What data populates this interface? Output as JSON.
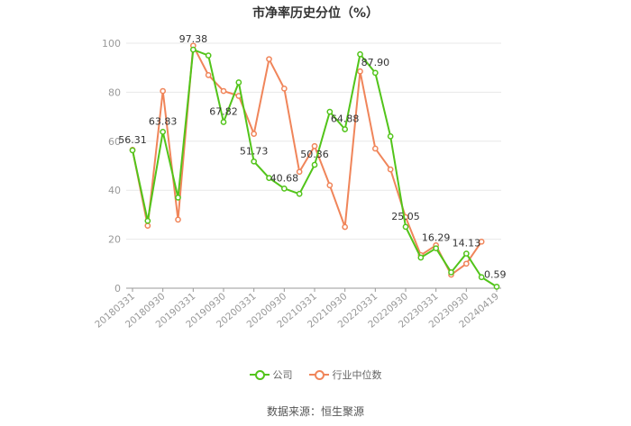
{
  "title": "市净率历史分位（%）",
  "source": "数据来源：恒生聚源",
  "legend": {
    "company": "公司",
    "industry": "行业中位数"
  },
  "colors": {
    "company": "#52c41a",
    "industry": "#f0855a",
    "grid": "#e8e8e8",
    "axis": "#999999"
  },
  "chart_data": {
    "type": "line",
    "title": "市净率历史分位（%）",
    "xlabel": "",
    "ylabel": "",
    "ylim": [
      0,
      100
    ],
    "yticks": [
      0,
      20,
      40,
      60,
      80,
      100
    ],
    "grid": true,
    "legend_position": "bottom",
    "x_tick_labels": [
      "20180331",
      "20180930",
      "20190331",
      "20190930",
      "20200331",
      "20200930",
      "20210331",
      "20210930",
      "20220331",
      "20220930",
      "20230331",
      "20230930",
      "20240419"
    ],
    "series": [
      {
        "name": "公司",
        "values": [
          56.31,
          27.5,
          63.83,
          37.0,
          97.38,
          95.0,
          67.82,
          84.0,
          51.73,
          45.0,
          40.68,
          38.5,
          50.36,
          72.0,
          64.88,
          95.5,
          87.9,
          62.0,
          25.05,
          12.5,
          16.29,
          6.5,
          14.13,
          4.5,
          0.59
        ],
        "labels": [
          "56.31",
          "",
          "63.83",
          "",
          "97.38",
          "",
          "67.82",
          "",
          "51.73",
          "",
          "40.68",
          "",
          "50.36",
          "",
          "64.88",
          "",
          "87.90",
          "",
          "25.05",
          "",
          "16.29",
          "",
          "14.13",
          "",
          "0.59"
        ]
      },
      {
        "name": "行业中位数",
        "values": [
          56.5,
          25.5,
          80.5,
          28.0,
          99.0,
          87.0,
          80.5,
          78.5,
          63.0,
          93.5,
          81.5,
          47.5,
          58.0,
          42.0,
          25.0,
          88.5,
          57.0,
          48.5,
          29.0,
          13.5,
          17.5,
          5.5,
          10.0,
          19.0
        ]
      }
    ]
  }
}
